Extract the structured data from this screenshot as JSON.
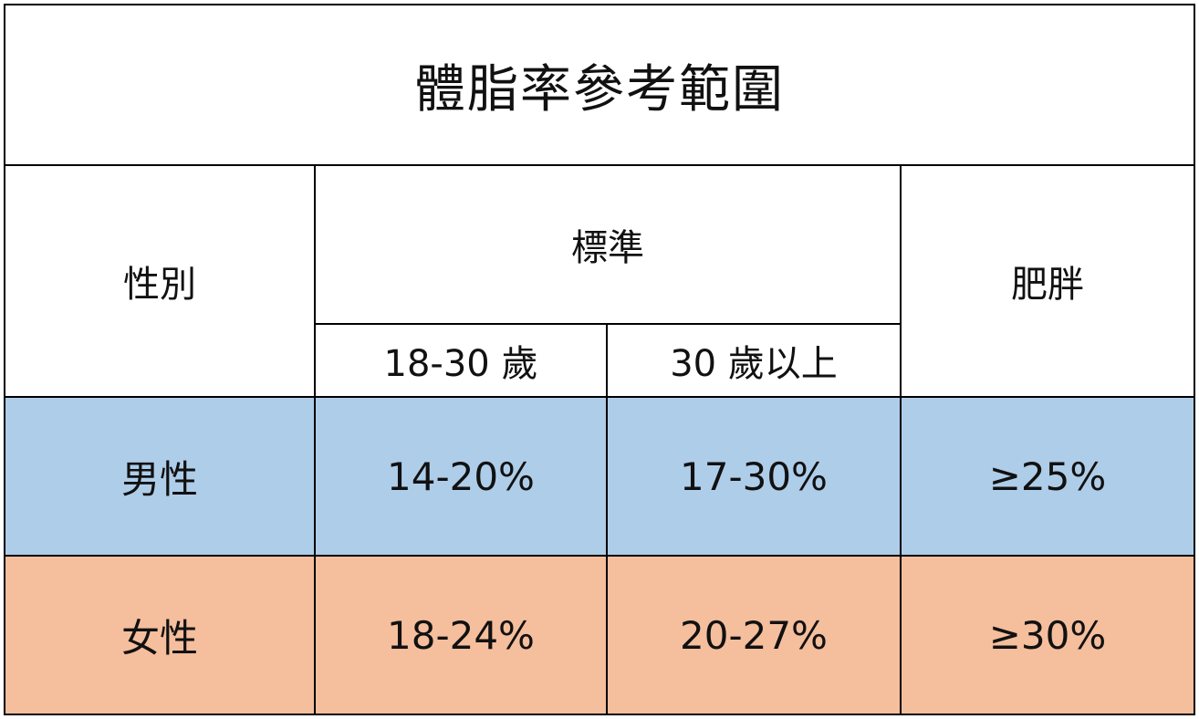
{
  "title": "體脂率參考範圍",
  "headers": {
    "gender": "性別",
    "standard": "標準",
    "age_18_30": "18-30 歲",
    "age_30_plus": "30 歲以上",
    "obese": "肥胖"
  },
  "rows": [
    {
      "gender": "男性",
      "age_18_30": "14-20%",
      "age_30_plus": "17-30%",
      "obese": "≥25%",
      "color": "#aecde9"
    },
    {
      "gender": "女性",
      "age_18_30": "18-24%",
      "age_30_plus": "20-27%",
      "obese": "≥30%",
      "color": "#f5be9d"
    }
  ]
}
